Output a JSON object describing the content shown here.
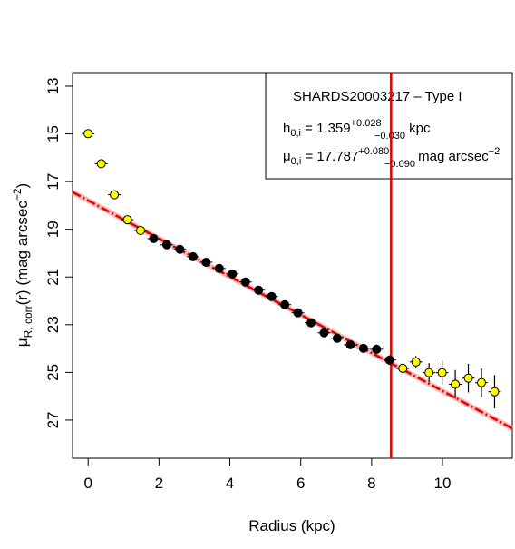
{
  "chart_data": {
    "type": "scatter",
    "xlabel": "Radius (kpc)",
    "ylabel": {
      "main": "μ",
      "sub": "R, corr",
      "rest": "(r) (mag arcsec",
      "sup": "−2",
      "end": ")"
    },
    "annotation": {
      "title": "SHARDS20003217  – Type I",
      "h": {
        "name": "h",
        "sub": "0,i",
        "eq": " = 1.359",
        "up": "+0.028",
        "down": "−0.030",
        "unit": " kpc"
      },
      "mu": {
        "name": "μ",
        "sub": "0,i",
        "eq": " = 17.787",
        "up": "+0.080",
        "down": "−0.090",
        "unit": " mag arcsec",
        "sup": "−2"
      }
    },
    "xlim": [
      -0.44,
      11.97
    ],
    "xticks": [
      0,
      2,
      4,
      6,
      8,
      10
    ],
    "ylim": [
      28.6,
      12.43
    ],
    "yticks": [
      13,
      15,
      17,
      19,
      21,
      23,
      25,
      27
    ],
    "series": [
      {
        "color": "#ffff00",
        "x": [
          0,
          0.37,
          0.74,
          1.11,
          1.48,
          8.88,
          9.25,
          9.62,
          9.99,
          10.36,
          10.73,
          11.1,
          11.47
        ],
        "values": [
          14.99,
          16.25,
          17.55,
          18.6,
          19.05,
          24.83,
          24.56,
          25.01,
          25.01,
          25.5,
          25.24,
          25.43,
          25.81
        ],
        "errors": [
          0.05,
          0.05,
          0.1,
          0.08,
          0.06,
          0.2,
          0.25,
          0.4,
          0.5,
          0.6,
          0.6,
          0.6,
          0.7
        ]
      },
      {
        "color": "#000000",
        "x": [
          1.85,
          2.22,
          2.59,
          2.96,
          3.33,
          3.7,
          4.07,
          4.44,
          4.81,
          5.18,
          5.55,
          5.92,
          6.29,
          6.66,
          7.03,
          7.4,
          7.77,
          8.14,
          8.51
        ],
        "values": [
          19.39,
          19.65,
          19.84,
          20.15,
          20.38,
          20.64,
          20.87,
          21.21,
          21.55,
          21.82,
          22.16,
          22.5,
          22.92,
          23.34,
          23.57,
          23.84,
          23.99,
          24.03,
          24.48
        ],
        "errors": [
          0.05,
          0.05,
          0.05,
          0.05,
          0.05,
          0.05,
          0.05,
          0.05,
          0.05,
          0.05,
          0.05,
          0.05,
          0.05,
          0.05,
          0.08,
          0.1,
          0.15,
          0.2,
          0.2
        ]
      }
    ],
    "fit": {
      "color": "#e00000",
      "x": [
        -0.44,
        11.97
      ],
      "values": [
        17.44,
        27.35
      ]
    },
    "vline": {
      "color": "#e00000",
      "x": 8.55
    }
  }
}
